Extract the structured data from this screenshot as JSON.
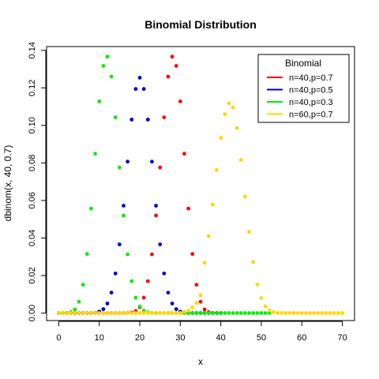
{
  "chart_data": {
    "type": "scatter",
    "title": "Binomial Distribution",
    "xlabel": "x",
    "ylabel": "dbinom(x, 40, 0.7)",
    "xlim": [
      -3,
      73
    ],
    "ylim": [
      -0.004,
      0.142
    ],
    "x_ticks": [
      0,
      10,
      20,
      30,
      40,
      50,
      60,
      70
    ],
    "y_ticks": [
      0.0,
      0.02,
      0.04,
      0.06,
      0.08,
      0.1,
      0.12,
      0.14
    ],
    "y_tick_labels": [
      "0.00",
      "0.02",
      "0.04",
      "0.06",
      "0.08",
      "0.10",
      "0.12",
      "0.14"
    ],
    "grid": false,
    "legend": {
      "title": "Binomial",
      "position": "top-right",
      "entries": [
        "n=40,p=0.7",
        "n=40,p=0.5",
        "n=40,p=0.3",
        "n=60,p=0.7"
      ]
    },
    "series": [
      {
        "name": "n=40,p=0.7",
        "color": "#ff0000",
        "x": [
          0,
          1,
          2,
          3,
          4,
          5,
          6,
          7,
          8,
          9,
          10,
          11,
          12,
          13,
          14,
          15,
          16,
          17,
          18,
          19,
          20,
          21,
          22,
          23,
          24,
          25,
          26,
          27,
          28,
          29,
          30,
          31,
          32,
          33,
          34,
          35,
          36,
          37,
          38,
          39,
          40
        ],
        "y": [
          0,
          0,
          0,
          0,
          0,
          0,
          0,
          0,
          0,
          0,
          0,
          0,
          0,
          0,
          0,
          0,
          0,
          0.0001,
          0.0003,
          0.0011,
          0.0031,
          0.0082,
          0.017,
          0.0313,
          0.052,
          0.0776,
          0.1043,
          0.126,
          0.1366,
          0.1317,
          0.1128,
          0.0849,
          0.0557,
          0.0315,
          0.0151,
          0.006,
          0.0019,
          0.0005,
          0.0001,
          0,
          0
        ]
      },
      {
        "name": "n=40,p=0.5",
        "color": "#0000cd",
        "x": [
          0,
          1,
          2,
          3,
          4,
          5,
          6,
          7,
          8,
          9,
          10,
          11,
          12,
          13,
          14,
          15,
          16,
          17,
          18,
          19,
          20,
          21,
          22,
          23,
          24,
          25,
          26,
          27,
          28,
          29,
          30,
          31,
          32,
          33,
          34,
          35,
          36,
          37,
          38,
          39,
          40
        ],
        "y": [
          0,
          0,
          0,
          0,
          0,
          0,
          0,
          0,
          0,
          0.0001,
          0.0008,
          0.0021,
          0.0051,
          0.0109,
          0.0211,
          0.0366,
          0.0572,
          0.0807,
          0.1031,
          0.1194,
          0.1254,
          0.1194,
          0.1031,
          0.0807,
          0.0572,
          0.0366,
          0.0211,
          0.0109,
          0.0051,
          0.0021,
          0.0008,
          0.0001,
          0,
          0,
          0,
          0,
          0,
          0,
          0,
          0,
          0
        ]
      },
      {
        "name": "n=40,p=0.3",
        "color": "#00ee00",
        "x": [
          0,
          1,
          2,
          3,
          4,
          5,
          6,
          7,
          8,
          9,
          10,
          11,
          12,
          13,
          14,
          15,
          16,
          17,
          18,
          19,
          20,
          21,
          22,
          23,
          24,
          25,
          26,
          27,
          28,
          29,
          30,
          31,
          32,
          33,
          34,
          35,
          36,
          37,
          38,
          39,
          40,
          41,
          42,
          43,
          44,
          45,
          46,
          47,
          48,
          49,
          50,
          51,
          52
        ],
        "y": [
          0,
          0,
          0.0001,
          0.0005,
          0.0019,
          0.006,
          0.0151,
          0.0315,
          0.0557,
          0.0849,
          0.1128,
          0.1317,
          0.1366,
          0.126,
          0.1043,
          0.0776,
          0.052,
          0.0313,
          0.017,
          0.0082,
          0.0035,
          0.0013,
          0.0004,
          0.0001,
          0,
          0,
          0,
          0,
          0,
          0,
          0,
          0,
          0,
          0,
          0,
          0,
          0,
          0,
          0,
          0,
          0,
          0,
          0,
          0,
          0,
          0,
          0,
          0,
          0,
          0,
          0,
          0,
          0
        ]
      },
      {
        "name": "n=60,p=0.7",
        "color": "#ffd700",
        "x": [
          0,
          1,
          2,
          3,
          4,
          5,
          6,
          7,
          8,
          9,
          10,
          11,
          12,
          13,
          14,
          15,
          16,
          17,
          18,
          19,
          20,
          21,
          22,
          23,
          24,
          25,
          26,
          27,
          28,
          29,
          30,
          31,
          32,
          33,
          34,
          35,
          36,
          37,
          38,
          39,
          40,
          41,
          42,
          43,
          44,
          45,
          46,
          47,
          48,
          49,
          50,
          51,
          52,
          53,
          54,
          55,
          56,
          57,
          58,
          59,
          60,
          61,
          62,
          63,
          64,
          65,
          66,
          67,
          68,
          69,
          70
        ],
        "y": [
          0,
          0,
          0,
          0,
          0,
          0,
          0,
          0,
          0,
          0,
          0,
          0,
          0,
          0,
          0,
          0,
          0,
          0,
          0,
          0,
          0,
          0,
          0,
          0,
          0,
          0,
          0,
          0,
          0,
          0,
          0.0001,
          0.0006,
          0.0013,
          0.003,
          0.0054,
          0.0095,
          0.0268,
          0.041,
          0.0578,
          0.0762,
          0.0934,
          0.106,
          0.1118,
          0.1095,
          0.0986,
          0.0816,
          0.0621,
          0.0432,
          0.0272,
          0.0152,
          0.008,
          0.0036,
          0.0014,
          0.0005,
          0.0001,
          0,
          0,
          0,
          0,
          0,
          0,
          0,
          0,
          0,
          0,
          0,
          0,
          0,
          0,
          0,
          0
        ]
      }
    ]
  }
}
